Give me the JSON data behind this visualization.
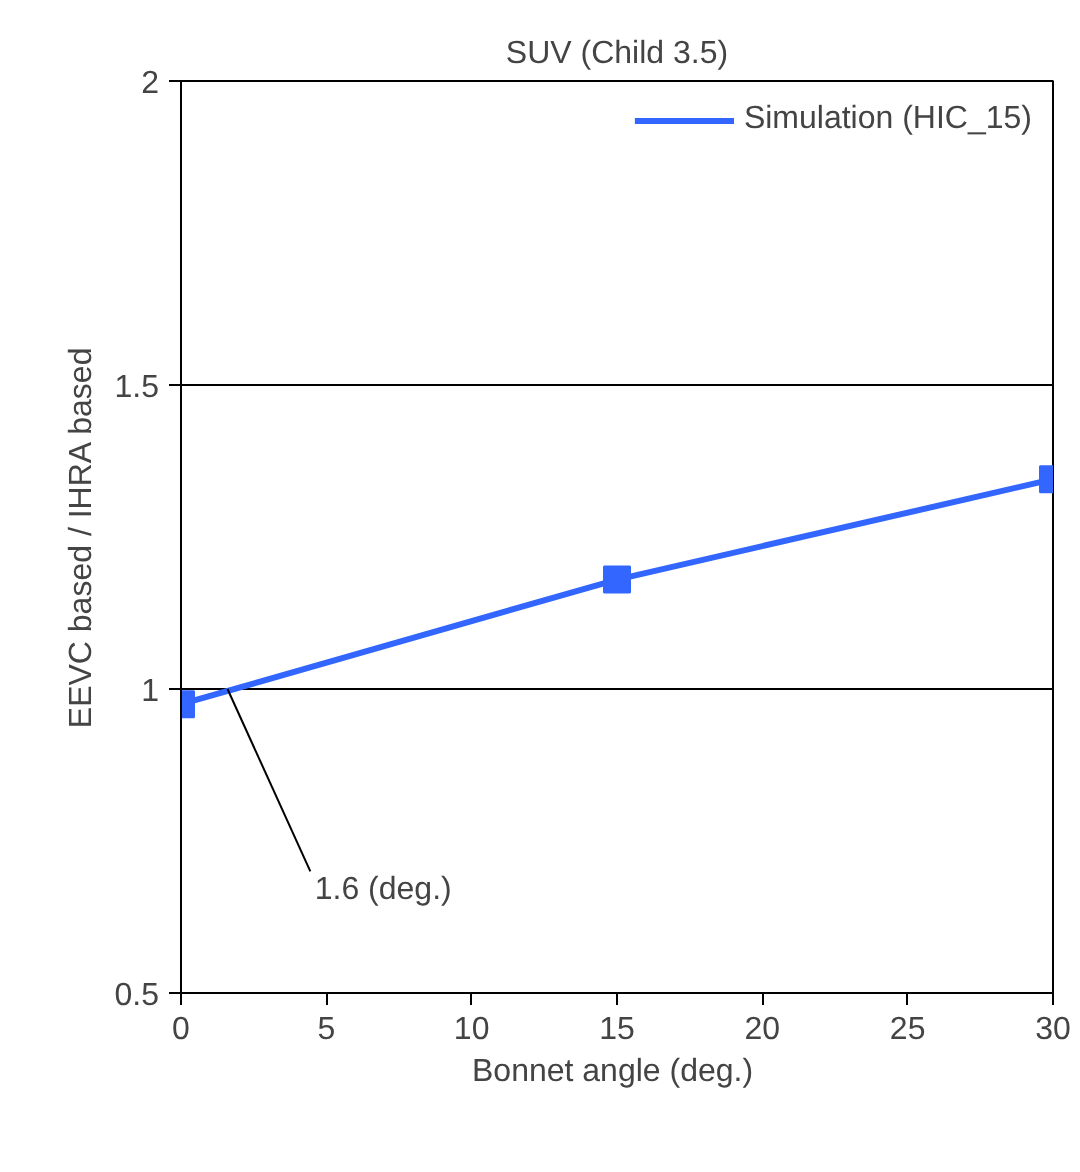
{
  "chart_data": {
    "type": "line",
    "title": "SUV (Child 3.5)",
    "xlabel": "Bonnet angle  (deg.)",
    "ylabel": "EEVC based / IHRA based",
    "x": [
      0,
      15,
      30
    ],
    "series": [
      {
        "name": "Simulation (HIC_15)",
        "color": "#3366ff",
        "values": [
          0.975,
          1.18,
          1.345
        ]
      }
    ],
    "xlim": [
      0,
      30
    ],
    "ylim": [
      0.5,
      2
    ],
    "xticks": [
      0,
      5,
      10,
      15,
      20,
      25,
      30
    ],
    "yticks": [
      0.5,
      1,
      1.5,
      2
    ],
    "grid": "y",
    "legend": "top right",
    "marker": "square",
    "line_style": "solid",
    "annotations": [
      {
        "text": "1.6 (deg.)",
        "x": 1.6,
        "y": 1
      }
    ]
  }
}
